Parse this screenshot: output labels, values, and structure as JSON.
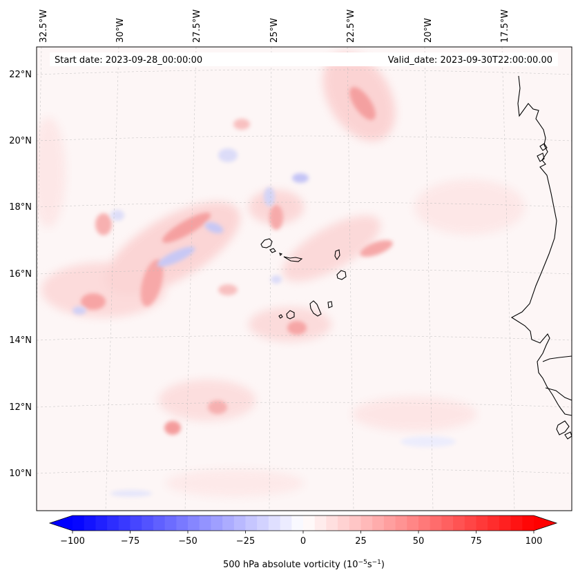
{
  "map": {
    "start_date_label": "Start date: 2023-09-28_00:00:00",
    "valid_date_label": "Valid_date: 2023-09-30T22:00:00.00",
    "lon_labels": [
      "32.5°W",
      "30°W",
      "27.5°W",
      "25°W",
      "22.5°W",
      "20°W",
      "17.5°W"
    ],
    "lat_labels": [
      "22°N",
      "20°N",
      "18°N",
      "16°N",
      "14°N",
      "12°N",
      "10°N"
    ],
    "region": "Cape Verde and West African coast"
  },
  "colorbar": {
    "label_main": "500 hPa absolute vorticity (10",
    "label_exp1": "−5",
    "label_mid": "s",
    "label_exp2": "−1",
    "label_end": ")",
    "ticks": [
      "−100",
      "−75",
      "−50",
      "−25",
      "0",
      "25",
      "50",
      "75",
      "100"
    ],
    "tick_values": [
      -100,
      -75,
      -50,
      -25,
      0,
      25,
      50,
      75,
      100
    ],
    "min": -100,
    "max": 100,
    "colormap": "bwr",
    "low_color": "#0000ff",
    "mid_color": "#ffffff",
    "high_color": "#ff0000"
  }
}
